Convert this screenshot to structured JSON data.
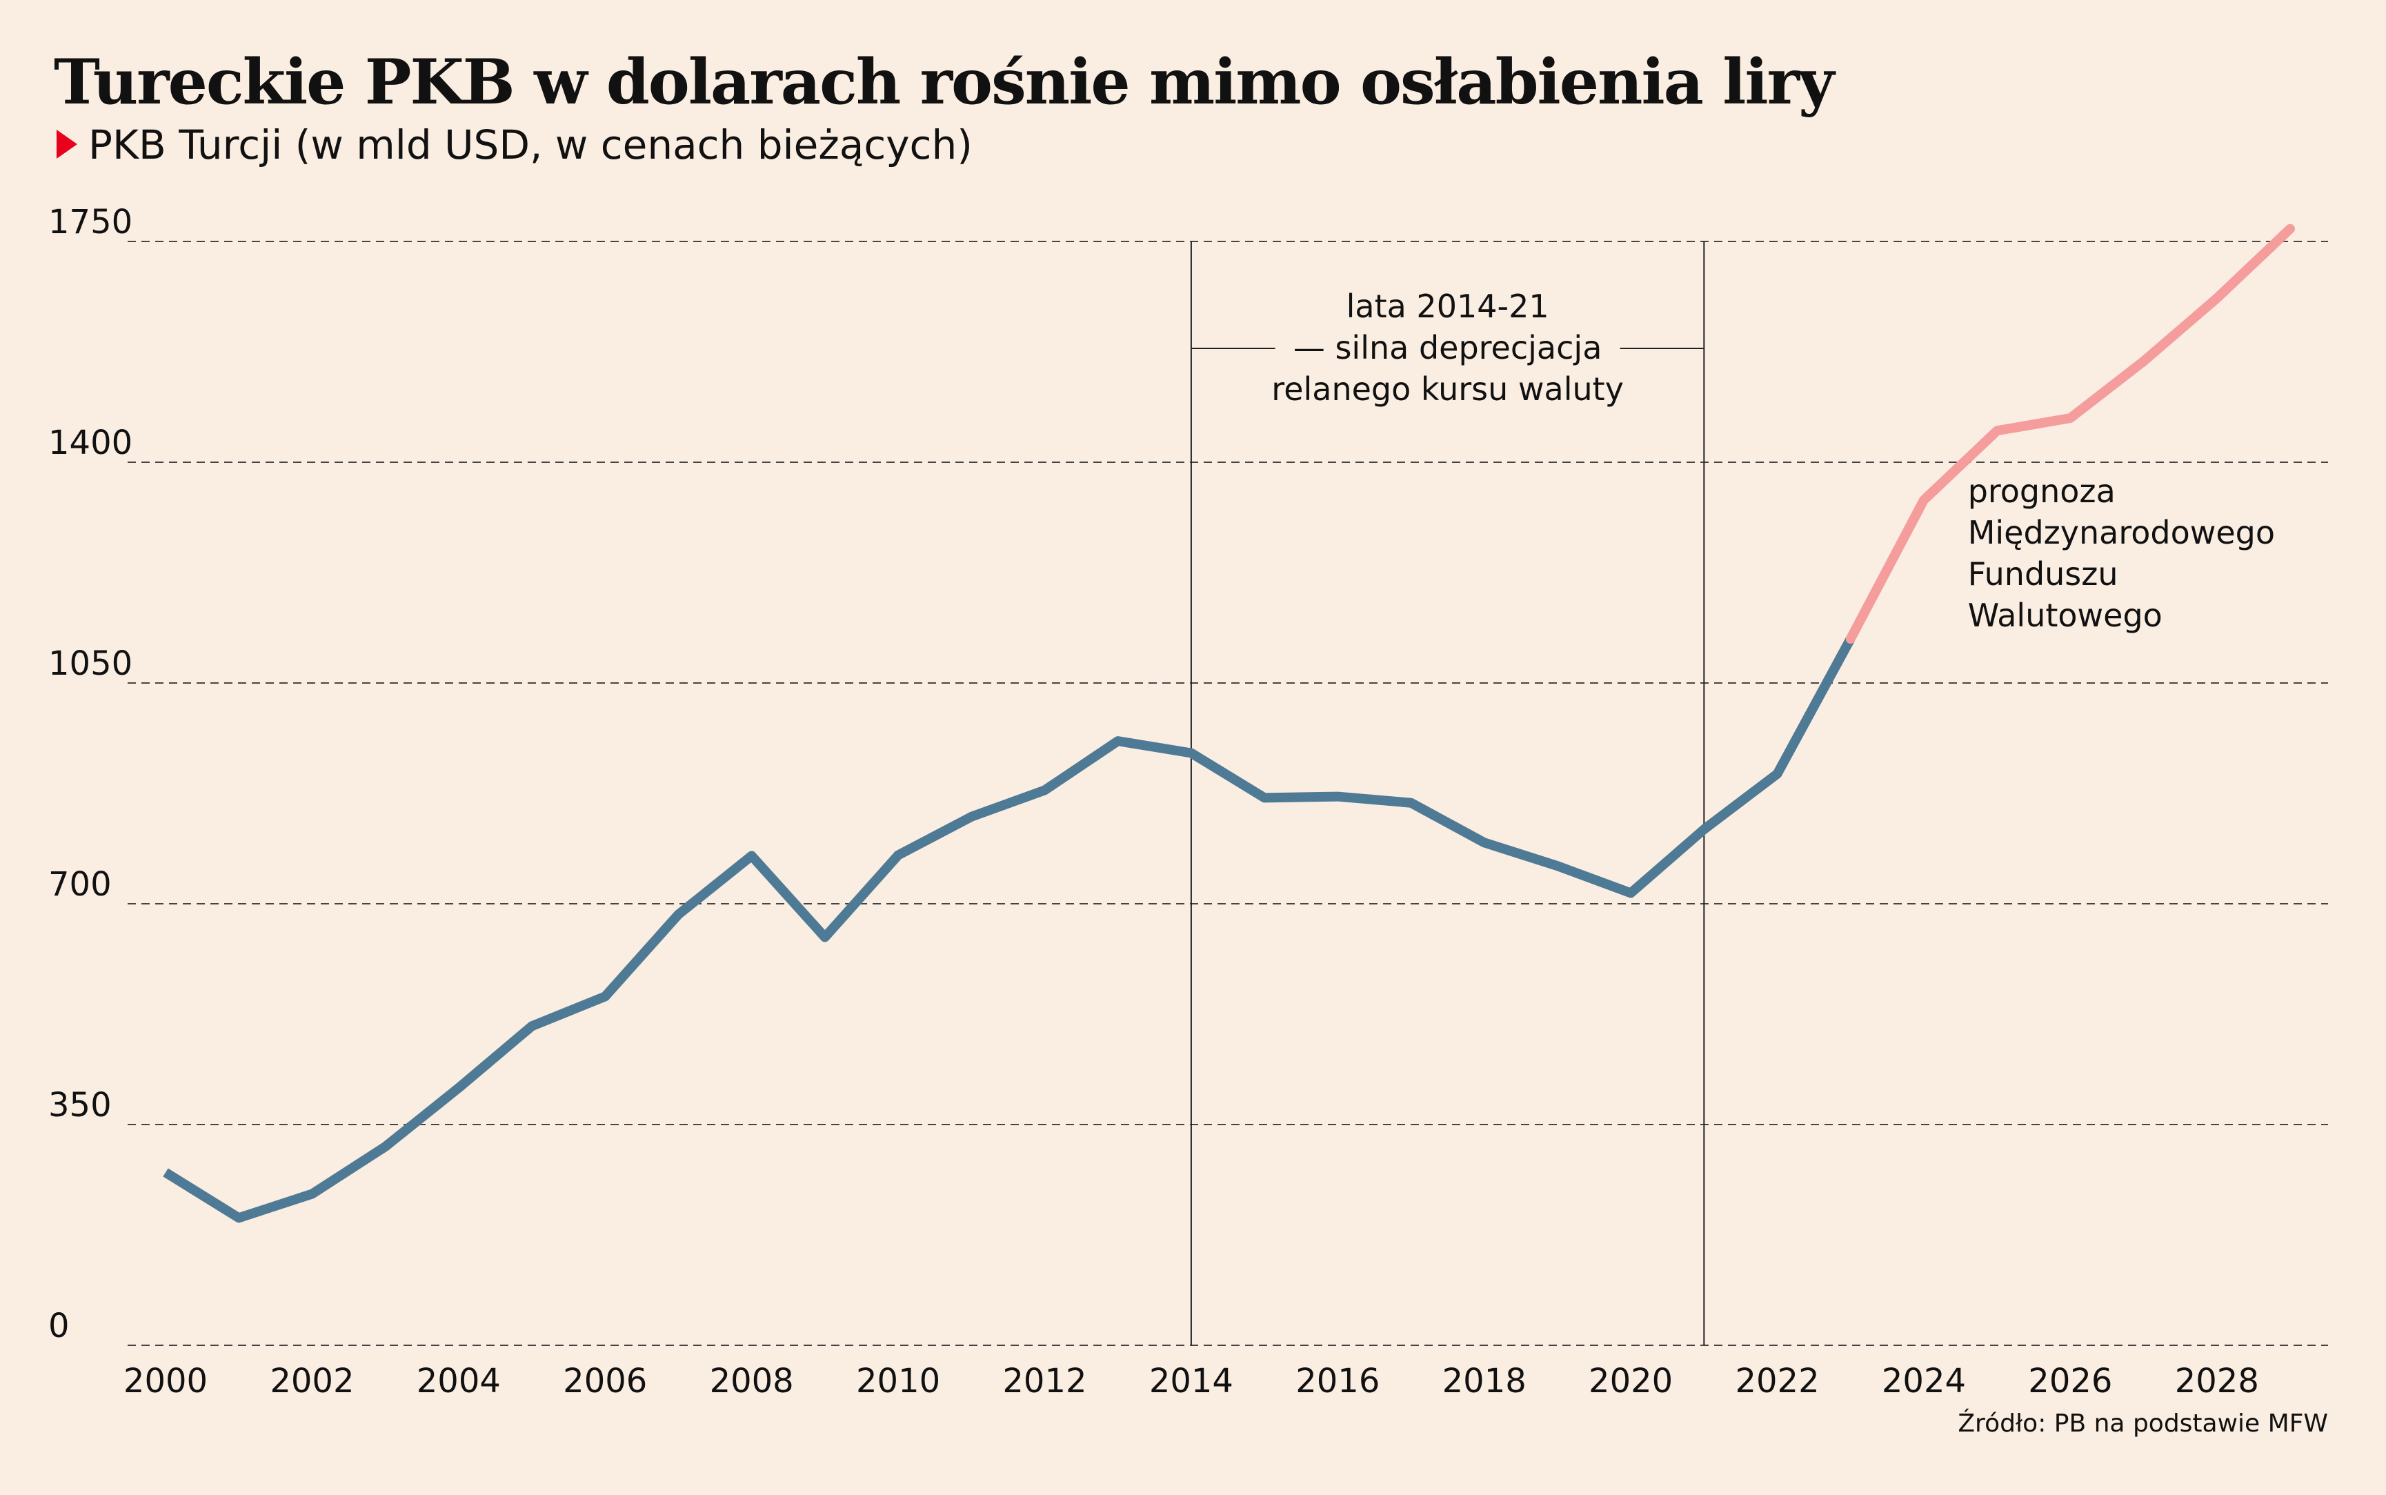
{
  "title": "Tureckie PKB w dolarach rośnie mimo osłabienia liry",
  "subtitle": "PKB Turcji (w mld USD, w cenach bieżących)",
  "source": "Źródło: PB na podstawie MFW",
  "colors": {
    "background": "#faede1",
    "actual": "#4e7a96",
    "forecast": "#f59c9c",
    "marker": "#e8001c"
  },
  "chart_data": {
    "type": "line",
    "xlim": [
      2000,
      2029
    ],
    "ylim": [
      0,
      1750
    ],
    "grid": true,
    "y_ticks": [
      0,
      350,
      700,
      1050,
      1400,
      1750
    ],
    "x_ticks": [
      2000,
      2002,
      2004,
      2006,
      2008,
      2010,
      2012,
      2014,
      2016,
      2018,
      2020,
      2022,
      2024,
      2026,
      2028
    ],
    "series": [
      {
        "role": "actual",
        "x": [
          2000,
          2001,
          2002,
          2003,
          2004,
          2005,
          2006,
          2007,
          2008,
          2009,
          2010,
          2011,
          2012,
          2013,
          2014,
          2015,
          2016,
          2017,
          2018,
          2019,
          2020,
          2021,
          2022,
          2023
        ],
        "values": [
          274,
          202,
          240,
          315,
          408,
          506,
          553,
          683,
          776,
          647,
          777,
          838,
          880,
          958,
          939,
          868,
          870,
          860,
          797,
          760,
          717,
          818,
          906,
          1120
        ]
      },
      {
        "role": "forecast",
        "x": [
          2023,
          2024,
          2025,
          2026,
          2027,
          2028,
          2029
        ],
        "values": [
          1120,
          1340,
          1450,
          1470,
          1560,
          1660,
          1770
        ]
      }
    ],
    "period": {
      "start": 2014,
      "end": 2021,
      "label_lines": [
        "lata 2014-21",
        "— silna deprecjacja",
        "relanego kursu waluty"
      ]
    },
    "forecast_label_lines": [
      "prognoza",
      "Międzynarodowego",
      "Funduszu",
      "Walutowego"
    ]
  }
}
